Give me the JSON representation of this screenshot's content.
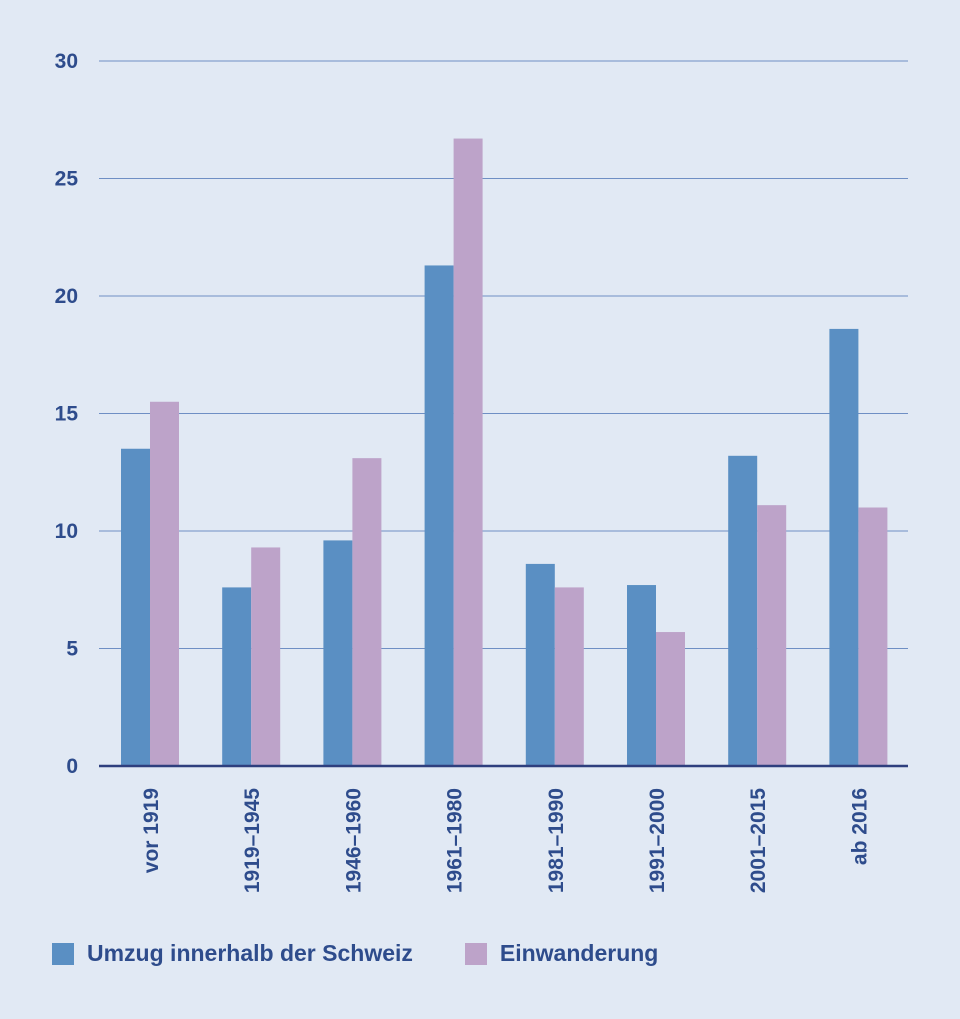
{
  "chart_data": {
    "type": "bar",
    "title": "",
    "xlabel": "",
    "ylabel": "",
    "ylim": [
      0,
      30
    ],
    "yticks": [
      0,
      5,
      10,
      15,
      20,
      25,
      30
    ],
    "grid": true,
    "categories": [
      "vor 1919",
      "1919–1945",
      "1946–1960",
      "1961–1980",
      "1981–1990",
      "1991–2000",
      "2001–2015",
      "ab 2016"
    ],
    "series": [
      {
        "name": "Umzug innerhalb der Schweiz",
        "color": "#5a8fc3",
        "values": [
          13.5,
          7.6,
          9.6,
          21.3,
          8.6,
          7.7,
          13.2,
          18.6
        ]
      },
      {
        "name": "Einwanderung",
        "color": "#bda3c9",
        "values": [
          15.5,
          9.3,
          13.1,
          26.7,
          7.6,
          5.7,
          11.1,
          11.0
        ]
      }
    ],
    "legend_position": "bottom-left"
  },
  "colors": {
    "background": "#e1e9f4",
    "text": "#2e4c8c",
    "grid": "#6f8fc4",
    "axis": "#2e3f7e"
  }
}
